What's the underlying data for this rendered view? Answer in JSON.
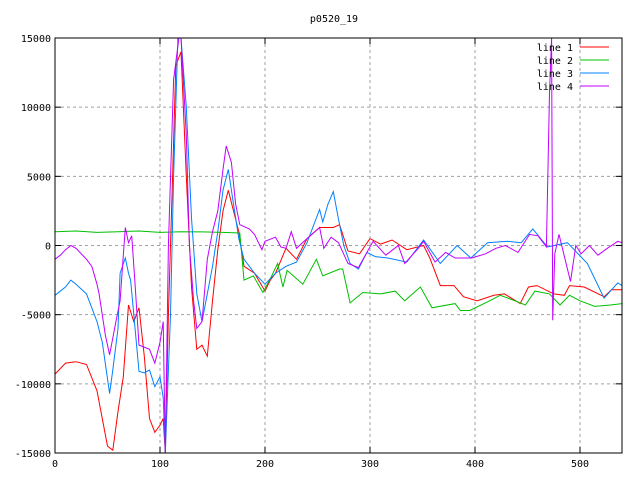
{
  "chart_data": {
    "type": "line",
    "title": "p0520_19",
    "xlabel": "",
    "ylabel": "",
    "xlim": [
      0,
      540
    ],
    "ylim": [
      -15000,
      15000
    ],
    "xticks": [
      0,
      100,
      200,
      300,
      400,
      500
    ],
    "yticks": [
      -15000,
      -10000,
      -5000,
      0,
      5000,
      10000,
      15000
    ],
    "grid": true,
    "legend_position": "top-right",
    "series": [
      {
        "name": "line 1",
        "color": "#ff0000",
        "x": [
          0,
          10,
          20,
          30,
          40,
          50,
          55,
          60,
          65,
          70,
          75,
          80,
          85,
          90,
          95,
          100,
          103,
          105,
          108,
          112,
          115,
          120,
          125,
          130,
          135,
          140,
          145,
          150,
          155,
          160,
          165,
          170,
          175,
          180,
          190,
          200,
          205,
          210,
          220,
          230,
          240,
          252,
          265,
          271,
          279,
          290,
          300,
          310,
          321,
          335,
          351,
          357,
          367,
          380,
          389,
          402,
          418,
          428,
          443,
          451,
          459,
          475,
          485,
          490,
          504,
          523,
          530,
          540
        ],
        "y": [
          -9300,
          -8500,
          -8400,
          -8600,
          -10500,
          -14500,
          -14800,
          -12000,
          -9500,
          -4300,
          -5500,
          -4500,
          -8000,
          -12500,
          -13500,
          -13000,
          -12500,
          -15000,
          -5000,
          5000,
          13000,
          14000,
          5000,
          -3000,
          -7500,
          -7200,
          -8000,
          -4000,
          -300,
          2500,
          4000,
          2500,
          1000,
          -1500,
          -2000,
          -3300,
          -2500,
          -2000,
          -200,
          -1000,
          500,
          1300,
          1300,
          1500,
          -400,
          -600,
          500,
          100,
          400,
          -300,
          0,
          -900,
          -2900,
          -2900,
          -3700,
          -4000,
          -3600,
          -3500,
          -4200,
          -3000,
          -2900,
          -3500,
          -3600,
          -2900,
          -3000,
          -3700,
          -3200,
          -3200
        ]
      },
      {
        "name": "line 2",
        "color": "#00c000",
        "x": [
          0,
          20,
          40,
          60,
          80,
          100,
          120,
          140,
          160,
          176,
          180,
          189,
          198,
          205,
          212,
          217,
          221,
          236,
          249,
          255,
          271,
          274,
          281,
          293,
          310,
          324,
          333,
          348,
          359,
          381,
          386,
          395,
          414,
          424,
          438,
          448,
          457,
          471,
          481,
          490,
          500,
          514,
          529,
          540
        ],
        "y": [
          1000,
          1050,
          950,
          1000,
          1050,
          950,
          1000,
          980,
          950,
          900,
          -2500,
          -2200,
          -3400,
          -2400,
          -1300,
          -3000,
          -1800,
          -2800,
          -1000,
          -2200,
          -1700,
          -1700,
          -4150,
          -3400,
          -3500,
          -3300,
          -4000,
          -3000,
          -4500,
          -4200,
          -4700,
          -4700,
          -4000,
          -3600,
          -4000,
          -4300,
          -3300,
          -3500,
          -4300,
          -3600,
          -4000,
          -4400,
          -4300,
          -4200
        ]
      },
      {
        "name": "line 3",
        "color": "#0080ff",
        "x": [
          0,
          10,
          15,
          20,
          30,
          40,
          45,
          52,
          55,
          60,
          62,
          67,
          70,
          72,
          75,
          80,
          85,
          90,
          95,
          100,
          103,
          105,
          110,
          113,
          117,
          120,
          125,
          130,
          135,
          140,
          145,
          150,
          155,
          160,
          165,
          170,
          175,
          180,
          190,
          200,
          210,
          220,
          230,
          240,
          252,
          255,
          260,
          265,
          270,
          275,
          281,
          289,
          297,
          305,
          317,
          335,
          351,
          367,
          383,
          396,
          412,
          431,
          444,
          455,
          469,
          488,
          507,
          523,
          536,
          540
        ],
        "y": [
          -3600,
          -3000,
          -2500,
          -2800,
          -3500,
          -5500,
          -7000,
          -10700,
          -9000,
          -6000,
          -2000,
          -900,
          -2000,
          -2500,
          -5000,
          -9100,
          -9200,
          -9000,
          -10200,
          -9500,
          -11000,
          -15000,
          -5000,
          5000,
          15000,
          15000,
          10000,
          2000,
          -3500,
          -5500,
          -3500,
          -1500,
          1000,
          4000,
          5500,
          3000,
          500,
          -1000,
          -2000,
          -2800,
          -2000,
          -1500,
          -1200,
          200,
          2600,
          1700,
          3000,
          3900,
          1900,
          0,
          -1300,
          -1700,
          -500,
          -800,
          -900,
          -1200,
          400,
          -1300,
          0,
          -900,
          200,
          300,
          200,
          1200,
          -100,
          200,
          -1300,
          -3800,
          -2700,
          -2900
        ]
      },
      {
        "name": "line 4",
        "color": "#c000ff",
        "x": [
          0,
          5,
          10,
          15,
          20,
          30,
          35,
          40,
          42,
          48,
          52,
          58,
          62,
          67,
          70,
          73,
          76,
          80,
          90,
          95,
          100,
          103,
          105,
          108,
          113,
          118,
          120,
          125,
          128,
          132,
          135,
          140,
          145,
          150,
          155,
          160,
          163,
          168,
          172,
          176,
          185,
          190,
          197,
          200,
          210,
          215,
          220,
          225,
          230,
          240,
          252,
          256,
          263,
          270,
          279,
          289,
          303,
          315,
          327,
          333,
          346,
          351,
          362,
          372,
          381,
          397,
          410,
          420,
          429,
          441,
          452,
          460,
          468,
          471,
          473,
          474,
          476,
          480,
          491,
          496,
          501,
          509,
          517,
          526,
          536,
          540
        ],
        "y": [
          -1000,
          -700,
          -300,
          0,
          -200,
          -1000,
          -1500,
          -2800,
          -3500,
          -6500,
          -7900,
          -5500,
          -4000,
          1300,
          200,
          700,
          -2500,
          -7200,
          -7500,
          -8500,
          -7000,
          -5500,
          -15000,
          0,
          12000,
          15000,
          15000,
          8000,
          0,
          -4000,
          -6000,
          -5500,
          -1000,
          1000,
          2500,
          5500,
          7200,
          6000,
          3000,
          1500,
          1200,
          800,
          -300,
          300,
          600,
          -100,
          -200,
          1000,
          -200,
          500,
          1300,
          -200,
          600,
          200,
          -1300,
          -1600,
          300,
          -700,
          0,
          -1300,
          -200,
          300,
          -1200,
          -500,
          -900,
          -900,
          -600,
          -200,
          0,
          -500,
          800,
          700,
          -100,
          11000,
          15000,
          -5400,
          -600,
          800,
          -2600,
          0,
          -600,
          0,
          -700,
          -200,
          300,
          200
        ]
      }
    ]
  }
}
